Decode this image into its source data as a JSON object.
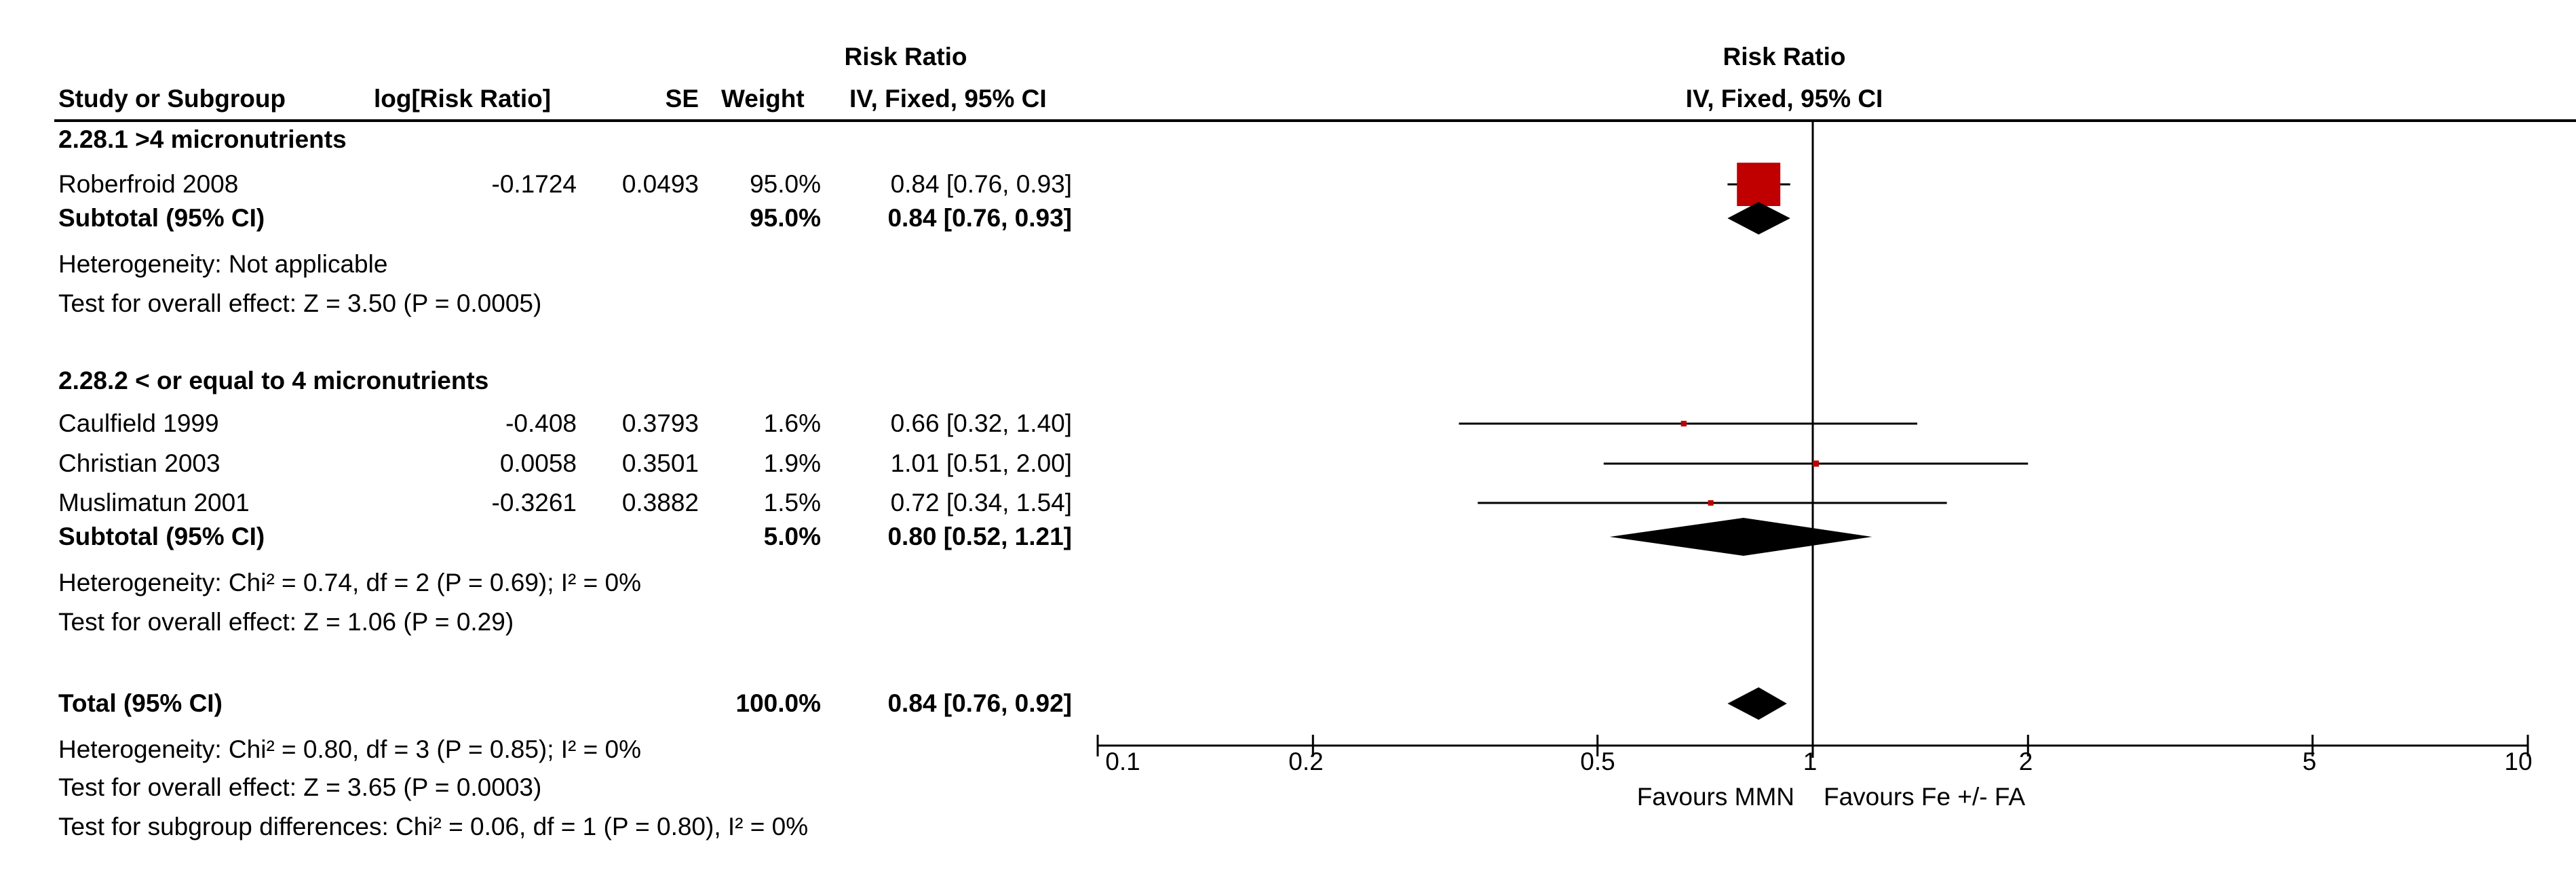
{
  "chart_data": {
    "type": "forest",
    "scale": "log",
    "x_ticks": [
      "0.1",
      "0.2",
      "0.5",
      "1",
      "2",
      "5",
      "10"
    ],
    "null_value": 1,
    "xlim": [
      0.1,
      10
    ],
    "header": {
      "effect_group": "Risk Ratio",
      "col_study": "Study or Subgroup",
      "col_logrr": "log[Risk Ratio]",
      "col_se": "SE",
      "col_weight": "Weight",
      "col_ci": "IV, Fixed, 95% CI",
      "plot_group": "Risk Ratio",
      "plot_method": "IV, Fixed, 95% CI"
    },
    "subgroups": [
      {
        "title": "2.28.1 >4 micronutrients",
        "studies": [
          {
            "name": "Roberfroid 2008",
            "logrr": "-0.1724",
            "se": "0.0493",
            "weight": "95.0%",
            "ci_text": "0.84 [0.76, 0.93]",
            "rr": 0.84,
            "lo": 0.76,
            "hi": 0.93,
            "w": 95.0
          }
        ],
        "subtotal": {
          "label": "Subtotal (95% CI)",
          "weight": "95.0%",
          "ci_text": "0.84 [0.76, 0.93]",
          "rr": 0.84,
          "lo": 0.76,
          "hi": 0.93
        },
        "heterogeneity": "Heterogeneity: Not applicable",
        "overall": "Test for overall effect: Z = 3.50 (P = 0.0005)"
      },
      {
        "title": "2.28.2 < or equal to 4 micronutrients",
        "studies": [
          {
            "name": "Caulfield 1999",
            "logrr": "-0.408",
            "se": "0.3793",
            "weight": "1.6%",
            "ci_text": "0.66 [0.32, 1.40]",
            "rr": 0.66,
            "lo": 0.32,
            "hi": 1.4,
            "w": 1.6
          },
          {
            "name": "Christian 2003",
            "logrr": "0.0058",
            "se": "0.3501",
            "weight": "1.9%",
            "ci_text": "1.01 [0.51, 2.00]",
            "rr": 1.01,
            "lo": 0.51,
            "hi": 2.0,
            "w": 1.9
          },
          {
            "name": "Muslimatun 2001",
            "logrr": "-0.3261",
            "se": "0.3882",
            "weight": "1.5%",
            "ci_text": "0.72 [0.34, 1.54]",
            "rr": 0.72,
            "lo": 0.34,
            "hi": 1.54,
            "w": 1.5
          }
        ],
        "subtotal": {
          "label": "Subtotal (95% CI)",
          "weight": "5.0%",
          "ci_text": "0.80 [0.52, 1.21]",
          "rr": 0.8,
          "lo": 0.52,
          "hi": 1.21
        },
        "heterogeneity": "Heterogeneity: Chi² = 0.74, df = 2 (P = 0.69); I² = 0%",
        "overall": "Test for overall effect: Z = 1.06 (P = 0.29)"
      }
    ],
    "total": {
      "label": "Total (95% CI)",
      "weight": "100.0%",
      "ci_text": "0.84 [0.76, 0.92]",
      "rr": 0.84,
      "lo": 0.76,
      "hi": 0.92,
      "heterogeneity": "Heterogeneity: Chi² = 0.80, df = 3 (P = 0.85); I² = 0%",
      "overall": "Test for overall effect: Z = 3.65 (P = 0.0003)",
      "subgroup_diff": "Test for subgroup differences: Chi² = 0.06, df = 1 (P = 0.80), I² = 0%"
    },
    "favours_left": "Favours MMN",
    "favours_right": "Favours Fe +/- FA",
    "colors": {
      "study_box": "#c00000",
      "diamond": "#000000",
      "line": "#000000"
    }
  }
}
